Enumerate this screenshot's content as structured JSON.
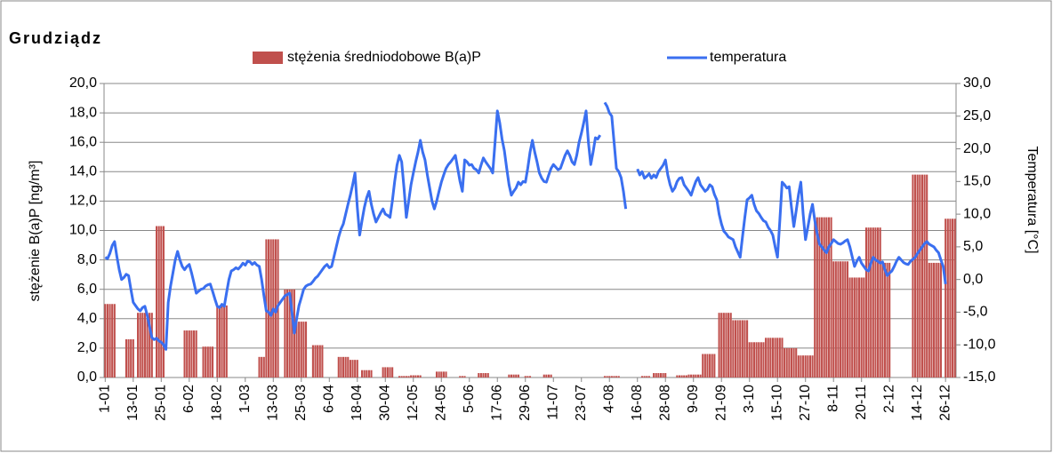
{
  "chart_data": {
    "type": "bar_line",
    "title": "Grudziądz",
    "y_label": "stężenie B(a)P [ng/m³]",
    "y2_label": "Temperatura [°C]",
    "categories": [
      "1-01",
      null,
      null,
      null,
      null,
      null,
      null,
      null,
      null,
      null,
      null,
      null,
      "13-01",
      null,
      null,
      null,
      null,
      null,
      null,
      null,
      null,
      null,
      null,
      null,
      "25-01",
      null,
      null,
      null,
      null,
      null,
      null,
      null,
      null,
      null,
      null,
      null,
      "6-02",
      null,
      null,
      null,
      null,
      null,
      null,
      null,
      null,
      null,
      null,
      null,
      "18-02",
      null,
      null,
      null,
      null,
      null,
      null,
      null,
      null,
      null,
      null,
      null,
      "1-03",
      null,
      null,
      null,
      null,
      null,
      null,
      null,
      null,
      null,
      null,
      null,
      "13-03",
      null,
      null,
      null,
      null,
      null,
      null,
      null,
      null,
      null,
      null,
      null,
      "25-03",
      null,
      null,
      null,
      null,
      null,
      null,
      null,
      null,
      null,
      null,
      null,
      "6-04",
      null,
      null,
      null,
      null,
      null,
      null,
      null,
      null,
      null,
      null,
      null,
      "18-04",
      null,
      null,
      null,
      null,
      null,
      null,
      null,
      null,
      null,
      null,
      null,
      "30-04",
      null,
      null,
      null,
      null,
      null,
      null,
      null,
      null,
      null,
      null,
      null,
      "12-05",
      null,
      null,
      null,
      null,
      null,
      null,
      null,
      null,
      null,
      null,
      null,
      "24-05",
      null,
      null,
      null,
      null,
      null,
      null,
      null,
      null,
      null,
      null,
      null,
      "5-06",
      null,
      null,
      null,
      null,
      null,
      null,
      null,
      null,
      null,
      null,
      null,
      "17-06",
      null,
      null,
      null,
      null,
      null,
      null,
      null,
      null,
      null,
      null,
      null,
      "29-06",
      null,
      null,
      null,
      null,
      null,
      null,
      null,
      null,
      null,
      null,
      null,
      "11-07",
      null,
      null,
      null,
      null,
      null,
      null,
      null,
      null,
      null,
      null,
      null,
      "23-07",
      null,
      null,
      null,
      null,
      null,
      null,
      null,
      null,
      null,
      null,
      null,
      "4-08",
      null,
      null,
      null,
      null,
      null,
      null,
      null,
      null,
      null,
      null,
      null,
      "16-08",
      null,
      null,
      null,
      null,
      null,
      null,
      null,
      null,
      null,
      null,
      null,
      "28-08",
      null,
      null,
      null,
      null,
      null,
      null,
      null,
      null,
      null,
      null,
      null,
      "9-09",
      null,
      null,
      null,
      null,
      null,
      null,
      null,
      null,
      null,
      null,
      null,
      "21-09",
      null,
      null,
      null,
      null,
      null,
      null,
      null,
      null,
      null,
      null,
      null,
      "3-10",
      null,
      null,
      null,
      null,
      null,
      null,
      null,
      null,
      null,
      null,
      null,
      "15-10",
      null,
      null,
      null,
      null,
      null,
      null,
      null,
      null,
      null,
      null,
      null,
      "27-10",
      null,
      null,
      null,
      null,
      null,
      null,
      null,
      null,
      null,
      null,
      null,
      "8-11",
      null,
      null,
      null,
      null,
      null,
      null,
      null,
      null,
      null,
      null,
      null,
      "20-11",
      null,
      null,
      null,
      null,
      null,
      null,
      null,
      null,
      null,
      null,
      null,
      "2-12",
      null,
      null,
      null,
      null,
      null,
      null,
      null,
      null,
      null,
      null,
      null,
      "14-12",
      null,
      null,
      null,
      null,
      null,
      null,
      null,
      null,
      null,
      null,
      null,
      "26-12",
      null,
      null,
      null,
      null
    ],
    "series": [
      {
        "name": "stężenia średniodobowe B(a)P",
        "kind": "bar",
        "color": "#c0504d",
        "axis": "y",
        "values": [
          5,
          5,
          5,
          5,
          5,
          null,
          null,
          null,
          null,
          2.6,
          2.6,
          2.6,
          2.6,
          null,
          4.4,
          4.4,
          4.4,
          4.4,
          4.4,
          4.4,
          4.4,
          null,
          10.3,
          10.3,
          10.3,
          10.3,
          null,
          null,
          null,
          null,
          null,
          null,
          null,
          null,
          3.2,
          3.2,
          3.2,
          3.2,
          3.2,
          3.2,
          null,
          null,
          2.1,
          2.1,
          2.1,
          2.1,
          2.1,
          null,
          4.9,
          4.9,
          4.9,
          4.9,
          4.9,
          null,
          null,
          null,
          null,
          null,
          null,
          null,
          null,
          null,
          null,
          null,
          null,
          null,
          1.4,
          1.4,
          1.4,
          9.4,
          9.4,
          9.4,
          9.4,
          9.4,
          9.4,
          null,
          null,
          6,
          6,
          6,
          6,
          6,
          3.8,
          3.8,
          3.8,
          3.8,
          3.8,
          null,
          null,
          2.2,
          2.2,
          2.2,
          2.2,
          2.2,
          null,
          null,
          null,
          null,
          null,
          null,
          1.4,
          1.4,
          1.4,
          1.4,
          1.4,
          1.2,
          1.2,
          1.2,
          1.2,
          null,
          0.5,
          0.5,
          0.5,
          0.5,
          0.5,
          null,
          null,
          null,
          null,
          0.7,
          0.7,
          0.7,
          0.7,
          0.7,
          null,
          null,
          0.1,
          0.1,
          0.1,
          0.1,
          0.1,
          0.15,
          0.15,
          0.15,
          0.15,
          0.15,
          null,
          null,
          null,
          null,
          null,
          null,
          0.4,
          0.4,
          0.4,
          0.4,
          0.4,
          null,
          null,
          null,
          null,
          null,
          0.1,
          0.1,
          0.1,
          null,
          null,
          null,
          null,
          null,
          0.3,
          0.3,
          0.3,
          0.3,
          0.3,
          null,
          null,
          null,
          null,
          null,
          null,
          null,
          null,
          0.2,
          0.2,
          0.2,
          0.2,
          0.2,
          null,
          null,
          0.1,
          0.1,
          0.1,
          null,
          null,
          null,
          null,
          null,
          0.2,
          0.2,
          0.2,
          0.2,
          null,
          null,
          null,
          null,
          null,
          null,
          null,
          null,
          null,
          null,
          null,
          null,
          null,
          null,
          null,
          null,
          null,
          null,
          null,
          null,
          null,
          null,
          0.1,
          0.1,
          0.1,
          0.1,
          0.1,
          0.1,
          0.1,
          null,
          null,
          null,
          null,
          null,
          null,
          null,
          null,
          null,
          0.1,
          0.1,
          0.1,
          0.1,
          null,
          0.3,
          0.3,
          0.3,
          0.3,
          0.3,
          0.3,
          null,
          null,
          null,
          null,
          0.15,
          0.15,
          0.15,
          0.15,
          0.15,
          0.2,
          0.2,
          0.2,
          0.2,
          0.2,
          0.2,
          1.6,
          1.6,
          1.6,
          1.6,
          1.6,
          1.6,
          null,
          4.4,
          4.4,
          4.4,
          4.4,
          4.4,
          4.4,
          3.9,
          3.9,
          3.9,
          3.9,
          3.9,
          3.9,
          3.9,
          2.4,
          2.4,
          2.4,
          2.4,
          2.4,
          2.4,
          2.4,
          2.7,
          2.7,
          2.7,
          2.7,
          2.7,
          2.7,
          2.7,
          2.7,
          2,
          2,
          2,
          2,
          2,
          2,
          1.5,
          1.5,
          1.5,
          1.5,
          1.5,
          1.5,
          1.5,
          10.9,
          10.9,
          10.9,
          10.9,
          10.9,
          10.9,
          10.9,
          10.9,
          7.9,
          7.9,
          7.9,
          7.9,
          7.9,
          7.9,
          7.9,
          6.8,
          6.8,
          6.8,
          6.8,
          6.8,
          6.8,
          6.8,
          10.2,
          10.2,
          10.2,
          10.2,
          10.2,
          10.2,
          10.2,
          7.8,
          7.8,
          7.8,
          7.8,
          null,
          null,
          null,
          null,
          null,
          null,
          null,
          null,
          null,
          13.8,
          13.8,
          13.8,
          13.8,
          13.8,
          13.8,
          13.8,
          7.8,
          7.8,
          7.8,
          7.8,
          7.8,
          7.8,
          null,
          10.8,
          10.8,
          10.8,
          10.8,
          10.8
        ]
      },
      {
        "name": "temperatura",
        "kind": "line",
        "color": "#3a6ff0",
        "axis": "y2",
        "values": [
          3.4,
          3.2,
          4.0,
          5.2,
          5.8,
          3.5,
          1.5,
          0.0,
          0.3,
          0.8,
          0.6,
          -1.5,
          -3.5,
          -4.0,
          -4.5,
          -4.8,
          -4.3,
          -4.1,
          -5.5,
          -7.2,
          -8.9,
          -9.2,
          -9.0,
          -9.4,
          -9.6,
          -10.0,
          -10.7,
          -3.5,
          -1.0,
          1.0,
          3.0,
          4.3,
          3.0,
          2.0,
          1.5,
          2.0,
          2.3,
          1.0,
          -0.5,
          -2.1,
          -1.8,
          -1.5,
          -1.4,
          -1.0,
          -0.8,
          -0.7,
          -1.8,
          -3.0,
          -4.1,
          -4.3,
          -3.8,
          -4.1,
          -2.0,
          0.0,
          1.3,
          1.5,
          1.8,
          1.6,
          2.0,
          2.5,
          2.2,
          2.8,
          2.7,
          2.3,
          2.6,
          2.2,
          2.0,
          0.0,
          -2.5,
          -4.8,
          -5.0,
          -5.5,
          -4.5,
          -5.0,
          -4.0,
          -3.5,
          -3.0,
          -2.5,
          -2.3,
          -2.1,
          -5.0,
          -8.2,
          -6.0,
          -4.0,
          -2.8,
          -1.5,
          -1.0,
          -0.8,
          -0.7,
          -0.3,
          0.2,
          0.5,
          1.0,
          1.5,
          2.0,
          2.3,
          1.8,
          2.0,
          3.5,
          5.0,
          6.5,
          7.7,
          8.5,
          10.0,
          11.5,
          12.9,
          14.5,
          16.3,
          11.0,
          6.8,
          9.0,
          11.0,
          12.5,
          13.5,
          11.5,
          10.0,
          8.8,
          9.5,
          10.2,
          10.8,
          10.0,
          9.8,
          9.5,
          12.0,
          15.0,
          17.5,
          19.0,
          18.0,
          14.0,
          9.5,
          12.0,
          14.5,
          16.3,
          18.0,
          19.5,
          21.3,
          19.5,
          18.3,
          16.0,
          14.0,
          12.0,
          10.8,
          12.0,
          13.5,
          14.9,
          16.0,
          17.0,
          17.6,
          18.0,
          18.5,
          19.0,
          17.0,
          15.0,
          13.5,
          18.3,
          18.0,
          17.5,
          17.6,
          17.0,
          16.8,
          16.3,
          17.5,
          18.6,
          18.0,
          17.5,
          17.0,
          16.3,
          21.0,
          25.8,
          24.0,
          21.5,
          19.7,
          17.0,
          14.5,
          12.9,
          13.5,
          14.0,
          14.9,
          14.5,
          15.0,
          14.9,
          17.0,
          19.5,
          21.3,
          19.5,
          18.0,
          16.3,
          15.5,
          15.0,
          14.9,
          16.0,
          17.0,
          17.6,
          17.2,
          16.8,
          17.0,
          18.0,
          19.0,
          19.7,
          19.0,
          18.0,
          17.6,
          19.0,
          21.0,
          22.4,
          24.0,
          25.8,
          21.0,
          17.6,
          19.5,
          21.7,
          21.5,
          22.1,
          null,
          27.1,
          26.5,
          25.5,
          25.0,
          21.0,
          17.0,
          16.5,
          15.6,
          13.5,
          10.8,
          null,
          null,
          null,
          null,
          16.9,
          16.0,
          16.5,
          15.5,
          15.8,
          16.2,
          15.5,
          16.0,
          15.6,
          16.5,
          17.0,
          17.5,
          18.3,
          16.0,
          14.5,
          13.5,
          14.0,
          15.0,
          15.5,
          15.6,
          14.5,
          14.0,
          13.5,
          12.9,
          14.0,
          15.0,
          15.6,
          14.5,
          14.0,
          13.5,
          13.8,
          14.5,
          14.2,
          13.0,
          12.2,
          10.0,
          8.5,
          7.4,
          7.0,
          6.5,
          6.3,
          6.1,
          5.0,
          4.2,
          3.4,
          6.5,
          9.5,
          12.2,
          12.5,
          12.9,
          11.5,
          10.5,
          10.1,
          9.5,
          9.0,
          8.8,
          8.0,
          7.5,
          6.8,
          5.0,
          3.4,
          9.0,
          14.9,
          14.5,
          14.0,
          14.2,
          11.0,
          8.1,
          10.5,
          13.0,
          14.9,
          10.0,
          6.1,
          8.0,
          10.0,
          11.5,
          9.0,
          7.0,
          5.4,
          5.0,
          4.5,
          4.1,
          5.0,
          5.5,
          6.1,
          5.8,
          5.5,
          5.4,
          5.6,
          5.9,
          6.1,
          5.0,
          3.5,
          2.0,
          2.8,
          3.4,
          2.5,
          2.0,
          1.5,
          1.3,
          2.5,
          3.4,
          3.0,
          2.8,
          2.5,
          2.7,
          1.5,
          0.6,
          1.0,
          1.3,
          2.0,
          2.8,
          3.4,
          3.0,
          2.6,
          2.4,
          2.3,
          2.8,
          3.1,
          3.4,
          4.0,
          4.5,
          5.0,
          5.5,
          5.8,
          5.4,
          5.2,
          5.0,
          4.5,
          4.1,
          3.0,
          2.0,
          -0.7,
          null,
          null,
          null,
          null
        ]
      }
    ],
    "ylim": [
      0,
      20
    ],
    "yticks": [
      {
        "value": 0,
        "label": "0,0"
      },
      {
        "value": 2,
        "label": "2,0"
      },
      {
        "value": 4,
        "label": "4,0"
      },
      {
        "value": 6,
        "label": "6,0"
      },
      {
        "value": 8,
        "label": "8,0"
      },
      {
        "value": 10,
        "label": "10,0"
      },
      {
        "value": 12,
        "label": "12,0"
      },
      {
        "value": 14,
        "label": "14,0"
      },
      {
        "value": 16,
        "label": "16,0"
      },
      {
        "value": 18,
        "label": "18,0"
      },
      {
        "value": 20,
        "label": "20,0"
      }
    ],
    "y2lim": [
      -15,
      30
    ],
    "y2ticks": [
      {
        "value": -15,
        "label": "-15,0"
      },
      {
        "value": -10,
        "label": "-10,0"
      },
      {
        "value": -5,
        "label": "-5,0"
      },
      {
        "value": 0,
        "label": "0,0"
      },
      {
        "value": 5,
        "label": "5,0"
      },
      {
        "value": 10,
        "label": "10,0"
      },
      {
        "value": 15,
        "label": "15,0"
      },
      {
        "value": 20,
        "label": "20,0"
      },
      {
        "value": 25,
        "label": "25,0"
      },
      {
        "value": 30,
        "label": "30,0"
      }
    ],
    "grid": true
  }
}
